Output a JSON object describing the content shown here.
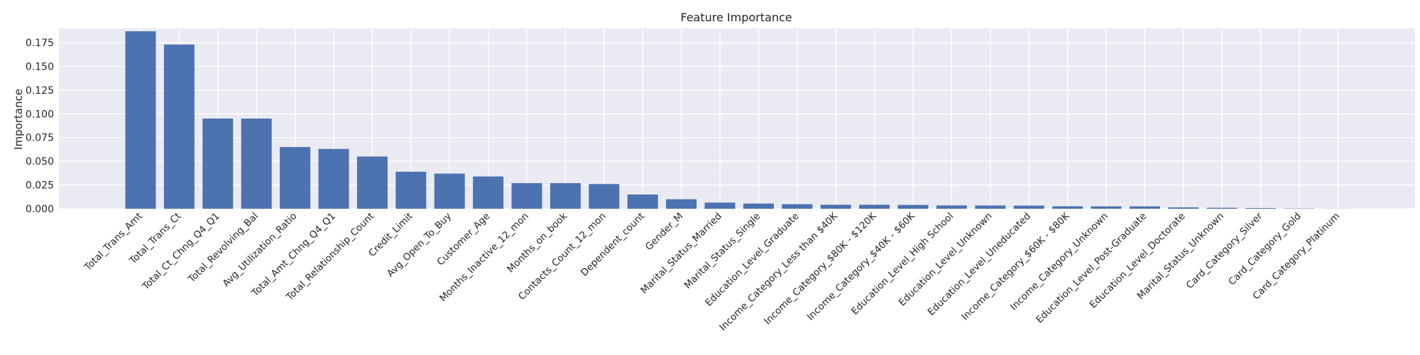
{
  "chart_data": {
    "type": "bar",
    "title": "Feature Importance",
    "xlabel": "",
    "ylabel": "Importance",
    "ylim": [
      0,
      0.19
    ],
    "yticks": [
      0.0,
      0.025,
      0.05,
      0.075,
      0.1,
      0.125,
      0.15,
      0.175
    ],
    "ytick_labels": [
      "0.000",
      "0.025",
      "0.050",
      "0.075",
      "0.100",
      "0.125",
      "0.150",
      "0.175"
    ],
    "grid": true,
    "bar_color": "#4c72b0",
    "background_color": "#eaeaf2",
    "grid_color": "#ffffff",
    "categories": [
      "Total_Trans_Amt",
      "Total_Trans_Ct",
      "Total_Ct_Chng_Q4_Q1",
      "Total_Revolving_Bal",
      "Avg_Utilization_Ratio",
      "Total_Amt_Chng_Q4_Q1",
      "Total_Relationship_Count",
      "Credit_Limit",
      "Avg_Open_To_Buy",
      "Customer_Age",
      "Months_Inactive_12_mon",
      "Months_on_book",
      "Contacts_Count_12_mon",
      "Dependent_count",
      "Gender_M",
      "Marital_Status_Married",
      "Marital_Status_Single",
      "Education_Level_Graduate",
      "Income_Category_Less than $40K",
      "Income_Category_$80K - $120K",
      "Income_Category_$40K - $60K",
      "Education_Level_High School",
      "Education_Level_Unknown",
      "Education_Level_Uneducated",
      "Income_Category_$60K - $80K",
      "Income_Category_Unknown",
      "Education_Level_Post-Graduate",
      "Education_Level_Doctorate",
      "Marital_Status_Unknown",
      "Card_Category_Silver",
      "Card_Category_Gold",
      "Card_Category_Platinum"
    ],
    "values": [
      0.187,
      0.173,
      0.095,
      0.095,
      0.065,
      0.063,
      0.055,
      0.039,
      0.037,
      0.034,
      0.027,
      0.027,
      0.026,
      0.015,
      0.01,
      0.0065,
      0.0055,
      0.0048,
      0.0042,
      0.0042,
      0.004,
      0.0035,
      0.0034,
      0.0033,
      0.0026,
      0.0025,
      0.0025,
      0.0014,
      0.001,
      0.0007,
      0.0003,
      0.0001
    ]
  }
}
